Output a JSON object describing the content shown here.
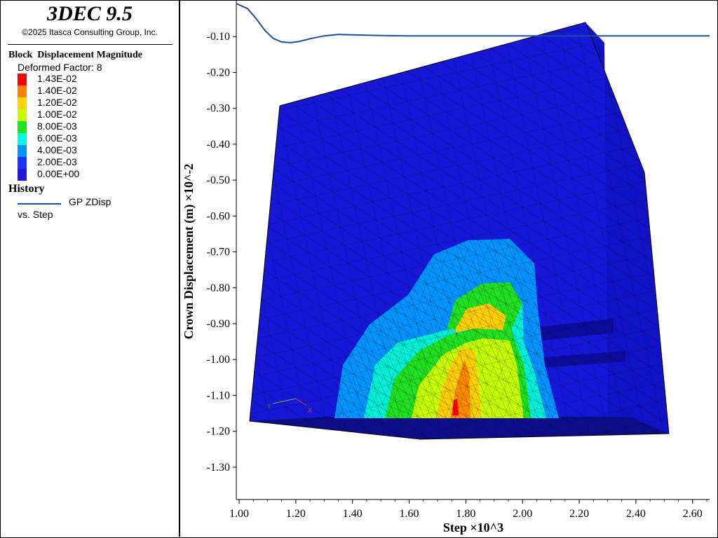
{
  "app": {
    "title": "3DEC 9.5",
    "copyright": "©2025 Itasca Consulting Group, Inc."
  },
  "contour": {
    "title": "Block  Displacement Magnitude",
    "deformed_factor": "Deformed Factor: 8",
    "levels": [
      {
        "label": "1.43E-02",
        "color": "#ff0000"
      },
      {
        "label": "1.40E-02",
        "color": "#ff7f00"
      },
      {
        "label": "1.20E-02",
        "color": "#ffd400"
      },
      {
        "label": "1.00E-02",
        "color": "#c8ff00"
      },
      {
        "label": "8.00E-03",
        "color": "#1ee61e"
      },
      {
        "label": "6.00E-03",
        "color": "#00ffe1"
      },
      {
        "label": "4.00E-03",
        "color": "#0094ff"
      },
      {
        "label": "2.00E-03",
        "color": "#1a33ff"
      },
      {
        "label": "0.00E+00",
        "color": "#1a1ae0"
      }
    ]
  },
  "history": {
    "heading": "History",
    "series_name": "GP ZDisp",
    "vs_label": "vs. Step",
    "color": "#1f4e9a"
  },
  "axes_text": {
    "x_label": "Step ×10^3",
    "y_label": "Crown Displacement (m) ×10^-2"
  },
  "chart_data": {
    "type": "line",
    "xlabel": "Step ×10^3",
    "ylabel": "Crown Displacement (m) ×10^-2",
    "xlim": [
      0.99,
      2.66
    ],
    "ylim": [
      -1.39,
      0
    ],
    "x_ticks": [
      "1.00",
      "1.20",
      "1.40",
      "1.60",
      "1.80",
      "2.00",
      "2.20",
      "2.40",
      "2.60"
    ],
    "y_ticks": [
      "-0.10",
      "-0.20",
      "-0.30",
      "-0.40",
      "-0.50",
      "-0.60",
      "-0.70",
      "-0.80",
      "-0.90",
      "-1.00",
      "-1.10",
      "-1.20",
      "-1.30"
    ],
    "series": [
      {
        "name": "GP ZDisp",
        "x": [
          0.99,
          1.03,
          1.06,
          1.09,
          1.12,
          1.15,
          1.18,
          1.21,
          1.25,
          1.3,
          1.35,
          1.4,
          1.5,
          1.6,
          1.8,
          2.0,
          2.2,
          2.4,
          2.66
        ],
        "y": [
          -0.008,
          -0.022,
          -0.05,
          -0.082,
          -0.105,
          -0.115,
          -0.117,
          -0.114,
          -0.106,
          -0.098,
          -0.094,
          -0.095,
          -0.097,
          -0.098,
          -0.098,
          -0.098,
          -0.098,
          -0.098,
          -0.098
        ]
      }
    ],
    "legend_position": "left-panel",
    "grid": false
  }
}
